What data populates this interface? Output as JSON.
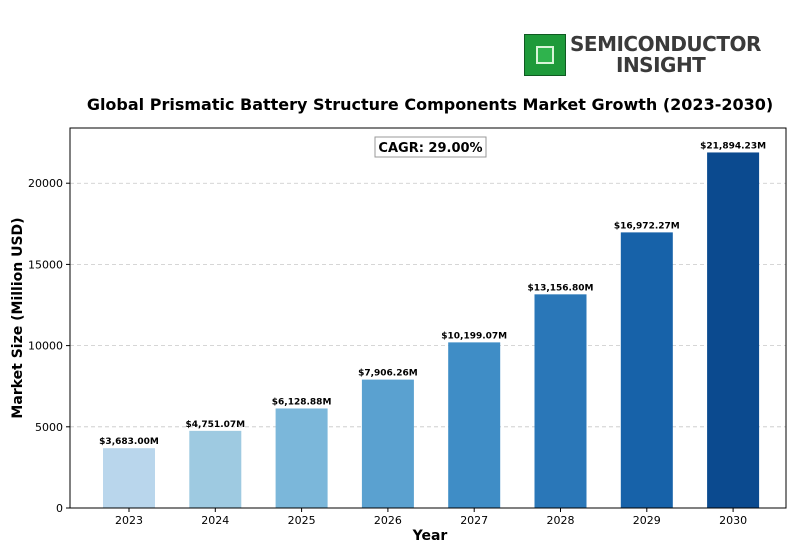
{
  "logo": {
    "line1": "SEMICONDUCTOR",
    "line2": "INSIGHT",
    "icon": "chip-icon",
    "color": "#1e9a3a"
  },
  "chart_data": {
    "type": "bar",
    "title": "Global Prismatic Battery Structure Components Market Growth (2023-2030)",
    "xlabel": "Year",
    "ylabel": "Market Size (Million USD)",
    "annotation": "CAGR: 29.00%",
    "categories": [
      "2023",
      "2024",
      "2025",
      "2026",
      "2027",
      "2028",
      "2029",
      "2030"
    ],
    "values": [
      3683.0,
      4751.07,
      6128.88,
      7906.26,
      10199.07,
      13156.8,
      16972.27,
      21894.23
    ],
    "value_labels": [
      "$3,683.00M",
      "$4,751.07M",
      "$6,128.88M",
      "$7,906.26M",
      "$10,199.07M",
      "$13,156.80M",
      "$16,972.27M",
      "$21,894.23M"
    ],
    "colors": [
      "#b9d6ec",
      "#9ecae1",
      "#7bb7da",
      "#5aa1d0",
      "#3f8dc6",
      "#2a77b8",
      "#1762a9",
      "#0b4a8f"
    ],
    "ylim": [
      0,
      23400
    ],
    "yticks": [
      0,
      5000,
      10000,
      15000,
      20000
    ],
    "grid": true
  }
}
